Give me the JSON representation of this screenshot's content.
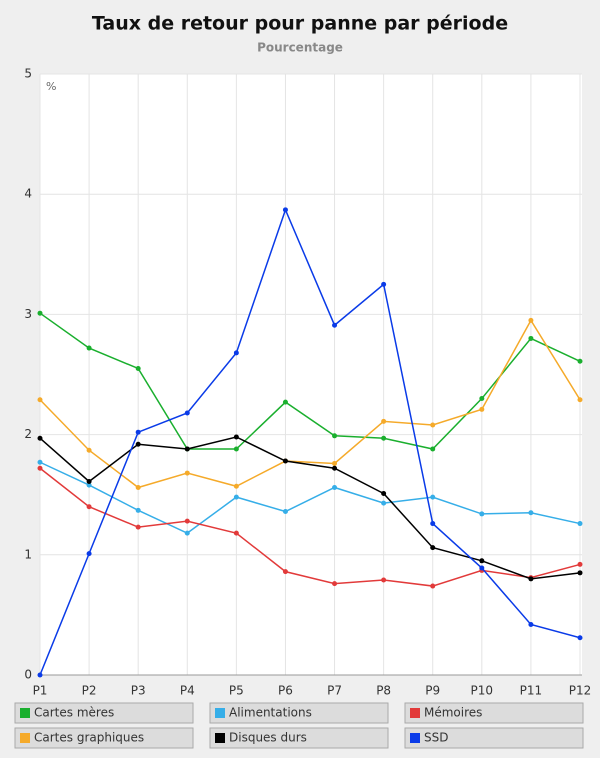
{
  "chart_data": {
    "type": "line",
    "title": "Taux de retour pour panne par période",
    "subtitle": "Pourcentage",
    "y_unit": "%",
    "categories": [
      "P1",
      "P2",
      "P3",
      "P4",
      "P5",
      "P6",
      "P7",
      "P8",
      "P9",
      "P10",
      "P11",
      "P12"
    ],
    "series": [
      {
        "name": "Cartes mères",
        "color": "#1aaf2e",
        "values": [
          3.01,
          2.72,
          2.55,
          1.88,
          1.88,
          2.27,
          1.99,
          1.97,
          1.88,
          2.3,
          2.8,
          2.61
        ]
      },
      {
        "name": "Alimentations",
        "color": "#36aee8",
        "values": [
          1.77,
          1.58,
          1.37,
          1.18,
          1.48,
          1.36,
          1.56,
          1.43,
          1.48,
          1.34,
          1.35,
          1.26
        ]
      },
      {
        "name": "Mémoires",
        "color": "#e23a3a",
        "values": [
          1.72,
          1.4,
          1.23,
          1.28,
          1.18,
          0.86,
          0.76,
          0.79,
          0.74,
          0.87,
          0.81,
          0.92
        ]
      },
      {
        "name": "Cartes graphiques",
        "color": "#f5aa2a",
        "values": [
          2.29,
          1.87,
          1.56,
          1.68,
          1.57,
          1.78,
          1.76,
          2.11,
          2.08,
          2.21,
          2.95,
          2.29
        ]
      },
      {
        "name": "Disques durs",
        "color": "#000000",
        "values": [
          1.97,
          1.61,
          1.92,
          1.88,
          1.98,
          1.78,
          1.72,
          1.51,
          1.06,
          0.95,
          0.8,
          0.85
        ]
      },
      {
        "name": "SSD",
        "color": "#0a3be8",
        "values": [
          0,
          1.01,
          2.02,
          2.18,
          2.68,
          3.87,
          2.91,
          3.25,
          1.26,
          0.89,
          0.42,
          0.31
        ]
      }
    ],
    "ylim": [
      0,
      5
    ],
    "yticks": [
      0,
      1,
      2,
      3,
      4,
      5
    ],
    "grid": true
  }
}
